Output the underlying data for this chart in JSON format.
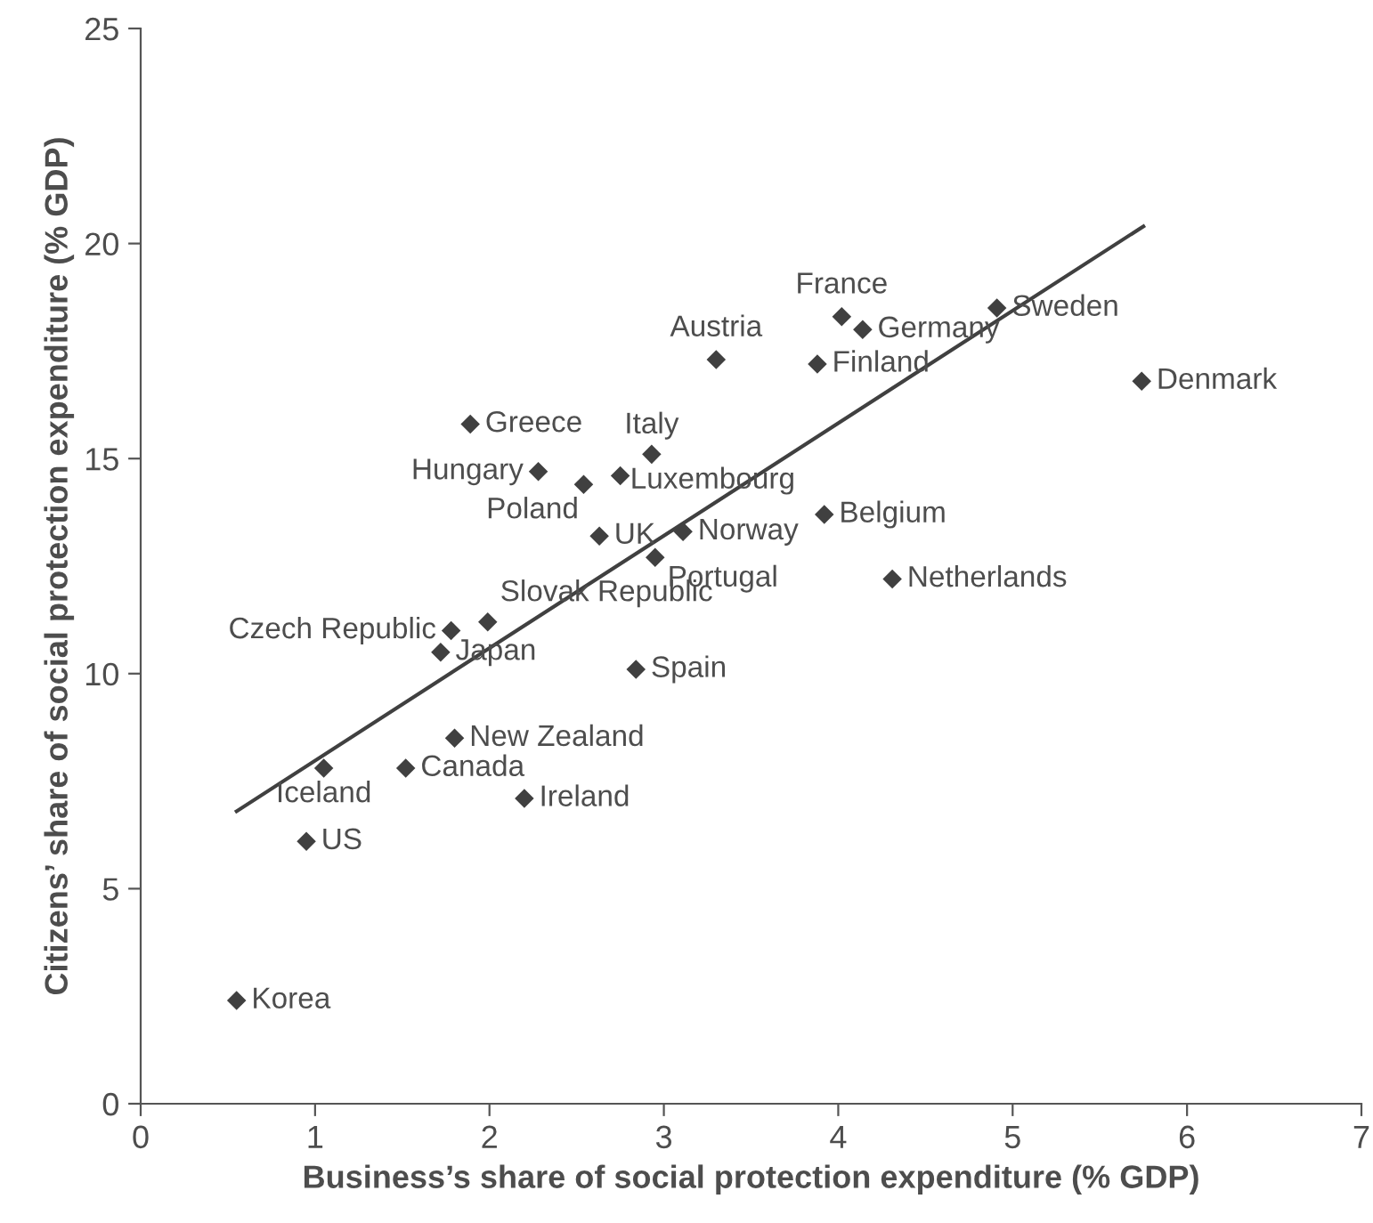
{
  "chart_data": {
    "type": "scatter",
    "xlabel": "Business’s share of social protection expenditure (% GDP)",
    "ylabel": "Citizens’ share of social protection expenditure (% GDP)",
    "xlim": [
      0,
      7
    ],
    "ylim": [
      0,
      25
    ],
    "xticks": [
      0,
      1,
      2,
      3,
      4,
      5,
      6,
      7
    ],
    "yticks": [
      0,
      5,
      10,
      15,
      20,
      25
    ],
    "grid": false,
    "legend": false,
    "marker": "diamond",
    "series": [
      {
        "color": "#404040",
        "x": [
          0.55,
          0.95,
          1.05,
          1.52,
          2.2,
          1.8,
          1.72,
          1.78,
          1.99,
          2.84,
          1.89,
          2.28,
          2.54,
          2.75,
          2.93,
          2.63,
          3.11,
          2.95,
          3.3,
          4.02,
          4.14,
          3.88,
          4.91,
          5.74,
          3.92,
          4.31
        ],
        "values": [
          2.4,
          6.1,
          7.8,
          7.8,
          7.1,
          8.5,
          10.5,
          11.0,
          11.2,
          10.1,
          15.8,
          14.7,
          14.4,
          14.6,
          15.1,
          13.2,
          13.3,
          12.7,
          17.3,
          18.3,
          18.0,
          17.2,
          18.5,
          16.8,
          13.7,
          12.2
        ]
      },
      {
        "type": "line",
        "color": "#404040",
        "marker": "none",
        "line_style": "solid",
        "x": [
          0.55,
          5.75
        ],
        "values": [
          6.8,
          20.4
        ]
      }
    ],
    "annotations": [
      {
        "text": "Korea",
        "x": 0.55,
        "y": 2.4
      },
      {
        "text": "US",
        "x": 0.95,
        "y": 6.1
      },
      {
        "text": "Iceland",
        "x": 1.05,
        "y": 7.8
      },
      {
        "text": "Canada",
        "x": 1.52,
        "y": 7.8
      },
      {
        "text": "Ireland",
        "x": 2.2,
        "y": 7.1
      },
      {
        "text": "New Zealand",
        "x": 1.8,
        "y": 8.5
      },
      {
        "text": "Japan",
        "x": 1.72,
        "y": 10.5
      },
      {
        "text": "Czech Republic",
        "x": 1.78,
        "y": 11.0
      },
      {
        "text": "Slovak Republic",
        "x": 1.99,
        "y": 11.2
      },
      {
        "text": "Spain",
        "x": 2.84,
        "y": 10.1
      },
      {
        "text": "Greece",
        "x": 1.89,
        "y": 15.8
      },
      {
        "text": "Hungary",
        "x": 2.28,
        "y": 14.7
      },
      {
        "text": "Poland",
        "x": 2.54,
        "y": 14.4
      },
      {
        "text": "Luxembourg",
        "x": 2.75,
        "y": 14.6
      },
      {
        "text": "Italy",
        "x": 2.93,
        "y": 15.1
      },
      {
        "text": "UK",
        "x": 2.63,
        "y": 13.2
      },
      {
        "text": "Norway",
        "x": 3.11,
        "y": 13.3
      },
      {
        "text": "Portugal",
        "x": 2.95,
        "y": 12.7
      },
      {
        "text": "Austria",
        "x": 3.3,
        "y": 17.3
      },
      {
        "text": "France",
        "x": 4.02,
        "y": 18.3
      },
      {
        "text": "Germany",
        "x": 4.14,
        "y": 18.0
      },
      {
        "text": "Finland",
        "x": 3.88,
        "y": 17.2
      },
      {
        "text": "Sweden",
        "x": 4.91,
        "y": 18.5
      },
      {
        "text": "Denmark",
        "x": 5.74,
        "y": 16.8
      },
      {
        "text": "Belgium",
        "x": 3.92,
        "y": 13.7
      },
      {
        "text": "Netherlands",
        "x": 4.31,
        "y": 12.2
      }
    ]
  }
}
